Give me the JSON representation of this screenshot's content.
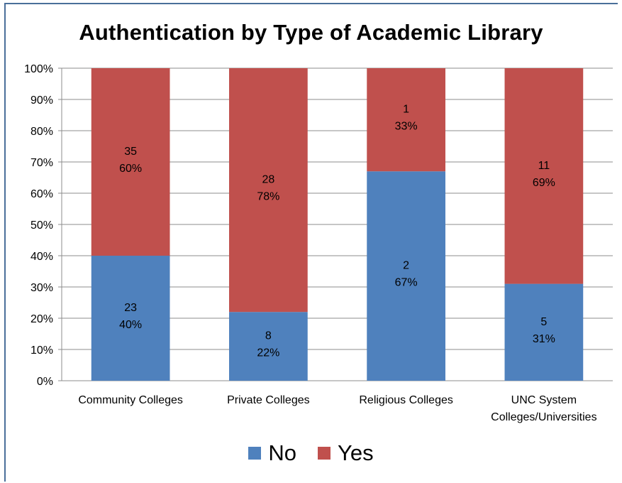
{
  "chart_data": {
    "type": "bar",
    "stacked": true,
    "title": "Authentication by Type of Academic Library",
    "categories": [
      [
        "Community Colleges"
      ],
      [
        "Private Colleges"
      ],
      [
        "Religious Colleges"
      ],
      [
        "UNC System",
        "Colleges/Universities"
      ]
    ],
    "series": [
      {
        "name": "No",
        "color": "#4f81bd",
        "values": [
          40,
          22,
          67,
          31
        ],
        "labels": [
          [
            "23",
            "40%"
          ],
          [
            "8",
            "22%"
          ],
          [
            "2",
            "67%"
          ],
          [
            "5",
            "31%"
          ]
        ]
      },
      {
        "name": "Yes",
        "color": "#c0504d",
        "values": [
          60,
          78,
          33,
          69
        ],
        "labels": [
          [
            "35",
            "60%"
          ],
          [
            "28",
            "78%"
          ],
          [
            "1",
            "33%"
          ],
          [
            "11",
            "69%"
          ]
        ]
      }
    ],
    "ylim": [
      0,
      100
    ],
    "yticks": [
      "0%",
      "10%",
      "20%",
      "30%",
      "40%",
      "50%",
      "60%",
      "70%",
      "80%",
      "90%",
      "100%"
    ],
    "grid": true,
    "legend_position": "bottom"
  }
}
